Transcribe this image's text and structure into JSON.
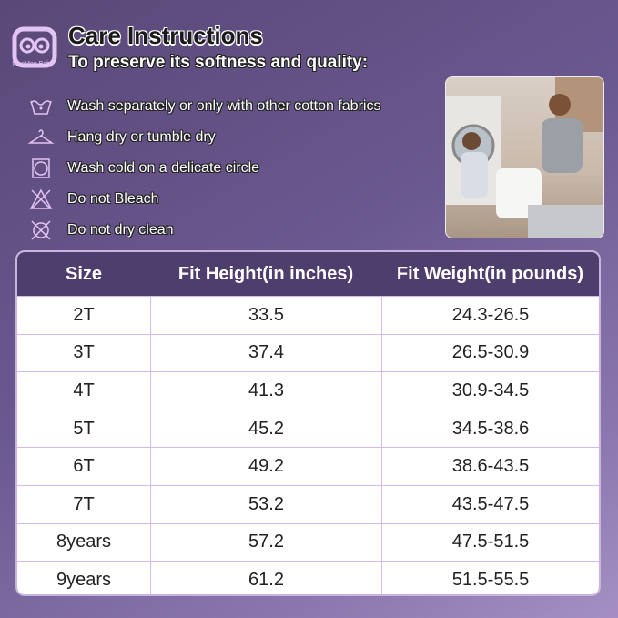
{
  "brand": {
    "name": "MooMoo Baby"
  },
  "title": "Care Instructions",
  "subtitle": "To preserve its softness and quality:",
  "care_items": [
    {
      "icon": "wash-tub-icon",
      "text": "Wash separately or only with other cotton fabrics"
    },
    {
      "icon": "hanger-icon",
      "text": "Hang dry or tumble dry"
    },
    {
      "icon": "tumble-dry-icon",
      "text": "Wash cold on a delicate circle"
    },
    {
      "icon": "no-bleach-icon",
      "text": "Do not Bleach"
    },
    {
      "icon": "no-dry-clean-icon",
      "text": "Do not dry clean"
    }
  ],
  "table": {
    "headers": [
      "Size",
      "Fit Height(in inches)",
      "Fit Weight(in pounds)"
    ],
    "rows": [
      [
        "2T",
        "33.5",
        "24.3-26.5"
      ],
      [
        "3T",
        "37.4",
        "26.5-30.9"
      ],
      [
        "4T",
        "41.3",
        "30.9-34.5"
      ],
      [
        "5T",
        "45.2",
        "34.5-38.6"
      ],
      [
        "6T",
        "49.2",
        "38.6-43.5"
      ],
      [
        "7T",
        "53.2",
        "43.5-47.5"
      ],
      [
        "8years",
        "57.2",
        "47.5-51.5"
      ],
      [
        "9years",
        "61.2",
        "51.5-55.5"
      ]
    ]
  },
  "colors": {
    "header_bg": "#4e3e6d",
    "icon": "#e2c4f5",
    "grid": "#d5b9ef"
  }
}
